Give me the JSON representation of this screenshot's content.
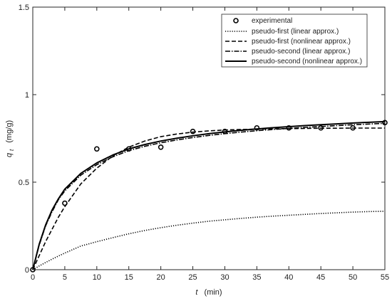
{
  "chart_data": {
    "type": "line",
    "xlabel": {
      "var": "t",
      "unit": "(min)"
    },
    "ylabel": {
      "var": "q",
      "sub": "t",
      "unit": "(mg/g)"
    },
    "xlim": [
      0,
      55
    ],
    "ylim": [
      0,
      1.5
    ],
    "x_ticks": [
      "0",
      "5",
      "10",
      "15",
      "20",
      "25",
      "30",
      "35",
      "40",
      "45",
      "50",
      "55"
    ],
    "y_ticks": [
      "0",
      "0.5",
      "1",
      "1.5"
    ],
    "grid": false,
    "legend_position": "top-right",
    "x": [
      0,
      1,
      2,
      3,
      4,
      5,
      7.5,
      10,
      12.5,
      15,
      17.5,
      20,
      22.5,
      25,
      27.5,
      30,
      32.5,
      35,
      37.5,
      40,
      42.5,
      45,
      47.5,
      50,
      52.5,
      55
    ],
    "series": [
      {
        "name": "experimental",
        "style": "markers",
        "points": [
          [
            0,
            0.0
          ],
          [
            5,
            0.38
          ],
          [
            10,
            0.69
          ],
          [
            15,
            0.69
          ],
          [
            20,
            0.7
          ],
          [
            25,
            0.79
          ],
          [
            30,
            0.79
          ],
          [
            35,
            0.81
          ],
          [
            40,
            0.81
          ],
          [
            45,
            0.81
          ],
          [
            50,
            0.81
          ],
          [
            55,
            0.84
          ]
        ]
      },
      {
        "name": "pseudo-first (linear approx.)",
        "style": "dotted",
        "values": [
          0,
          0.021,
          0.041,
          0.06,
          0.078,
          0.095,
          0.135,
          0.16,
          0.183,
          0.205,
          0.224,
          0.24,
          0.254,
          0.266,
          0.277,
          0.285,
          0.293,
          0.3,
          0.306,
          0.311,
          0.316,
          0.321,
          0.325,
          0.329,
          0.332,
          0.334
        ]
      },
      {
        "name": "pseudo-first (nonlinear approx.)",
        "style": "dashed",
        "values": [
          0,
          0.08,
          0.16,
          0.23,
          0.3,
          0.36,
          0.49,
          0.58,
          0.65,
          0.7,
          0.735,
          0.76,
          0.775,
          0.786,
          0.793,
          0.798,
          0.801,
          0.803,
          0.805,
          0.806,
          0.807,
          0.808,
          0.808,
          0.809,
          0.809,
          0.809
        ]
      },
      {
        "name": "pseudo-second (linear approx.)",
        "style": "dashdot",
        "values": [
          0,
          0.14,
          0.25,
          0.33,
          0.4,
          0.45,
          0.54,
          0.6,
          0.645,
          0.68,
          0.705,
          0.725,
          0.741,
          0.755,
          0.767,
          0.777,
          0.786,
          0.794,
          0.801,
          0.807,
          0.813,
          0.818,
          0.823,
          0.828,
          0.832,
          0.836
        ]
      },
      {
        "name": "pseudo-second (nonlinear approx.)",
        "style": "solid",
        "values": [
          0,
          0.145,
          0.255,
          0.34,
          0.405,
          0.46,
          0.55,
          0.61,
          0.655,
          0.69,
          0.715,
          0.735,
          0.751,
          0.765,
          0.777,
          0.787,
          0.796,
          0.804,
          0.811,
          0.817,
          0.823,
          0.828,
          0.833,
          0.838,
          0.842,
          0.846
        ]
      }
    ]
  }
}
